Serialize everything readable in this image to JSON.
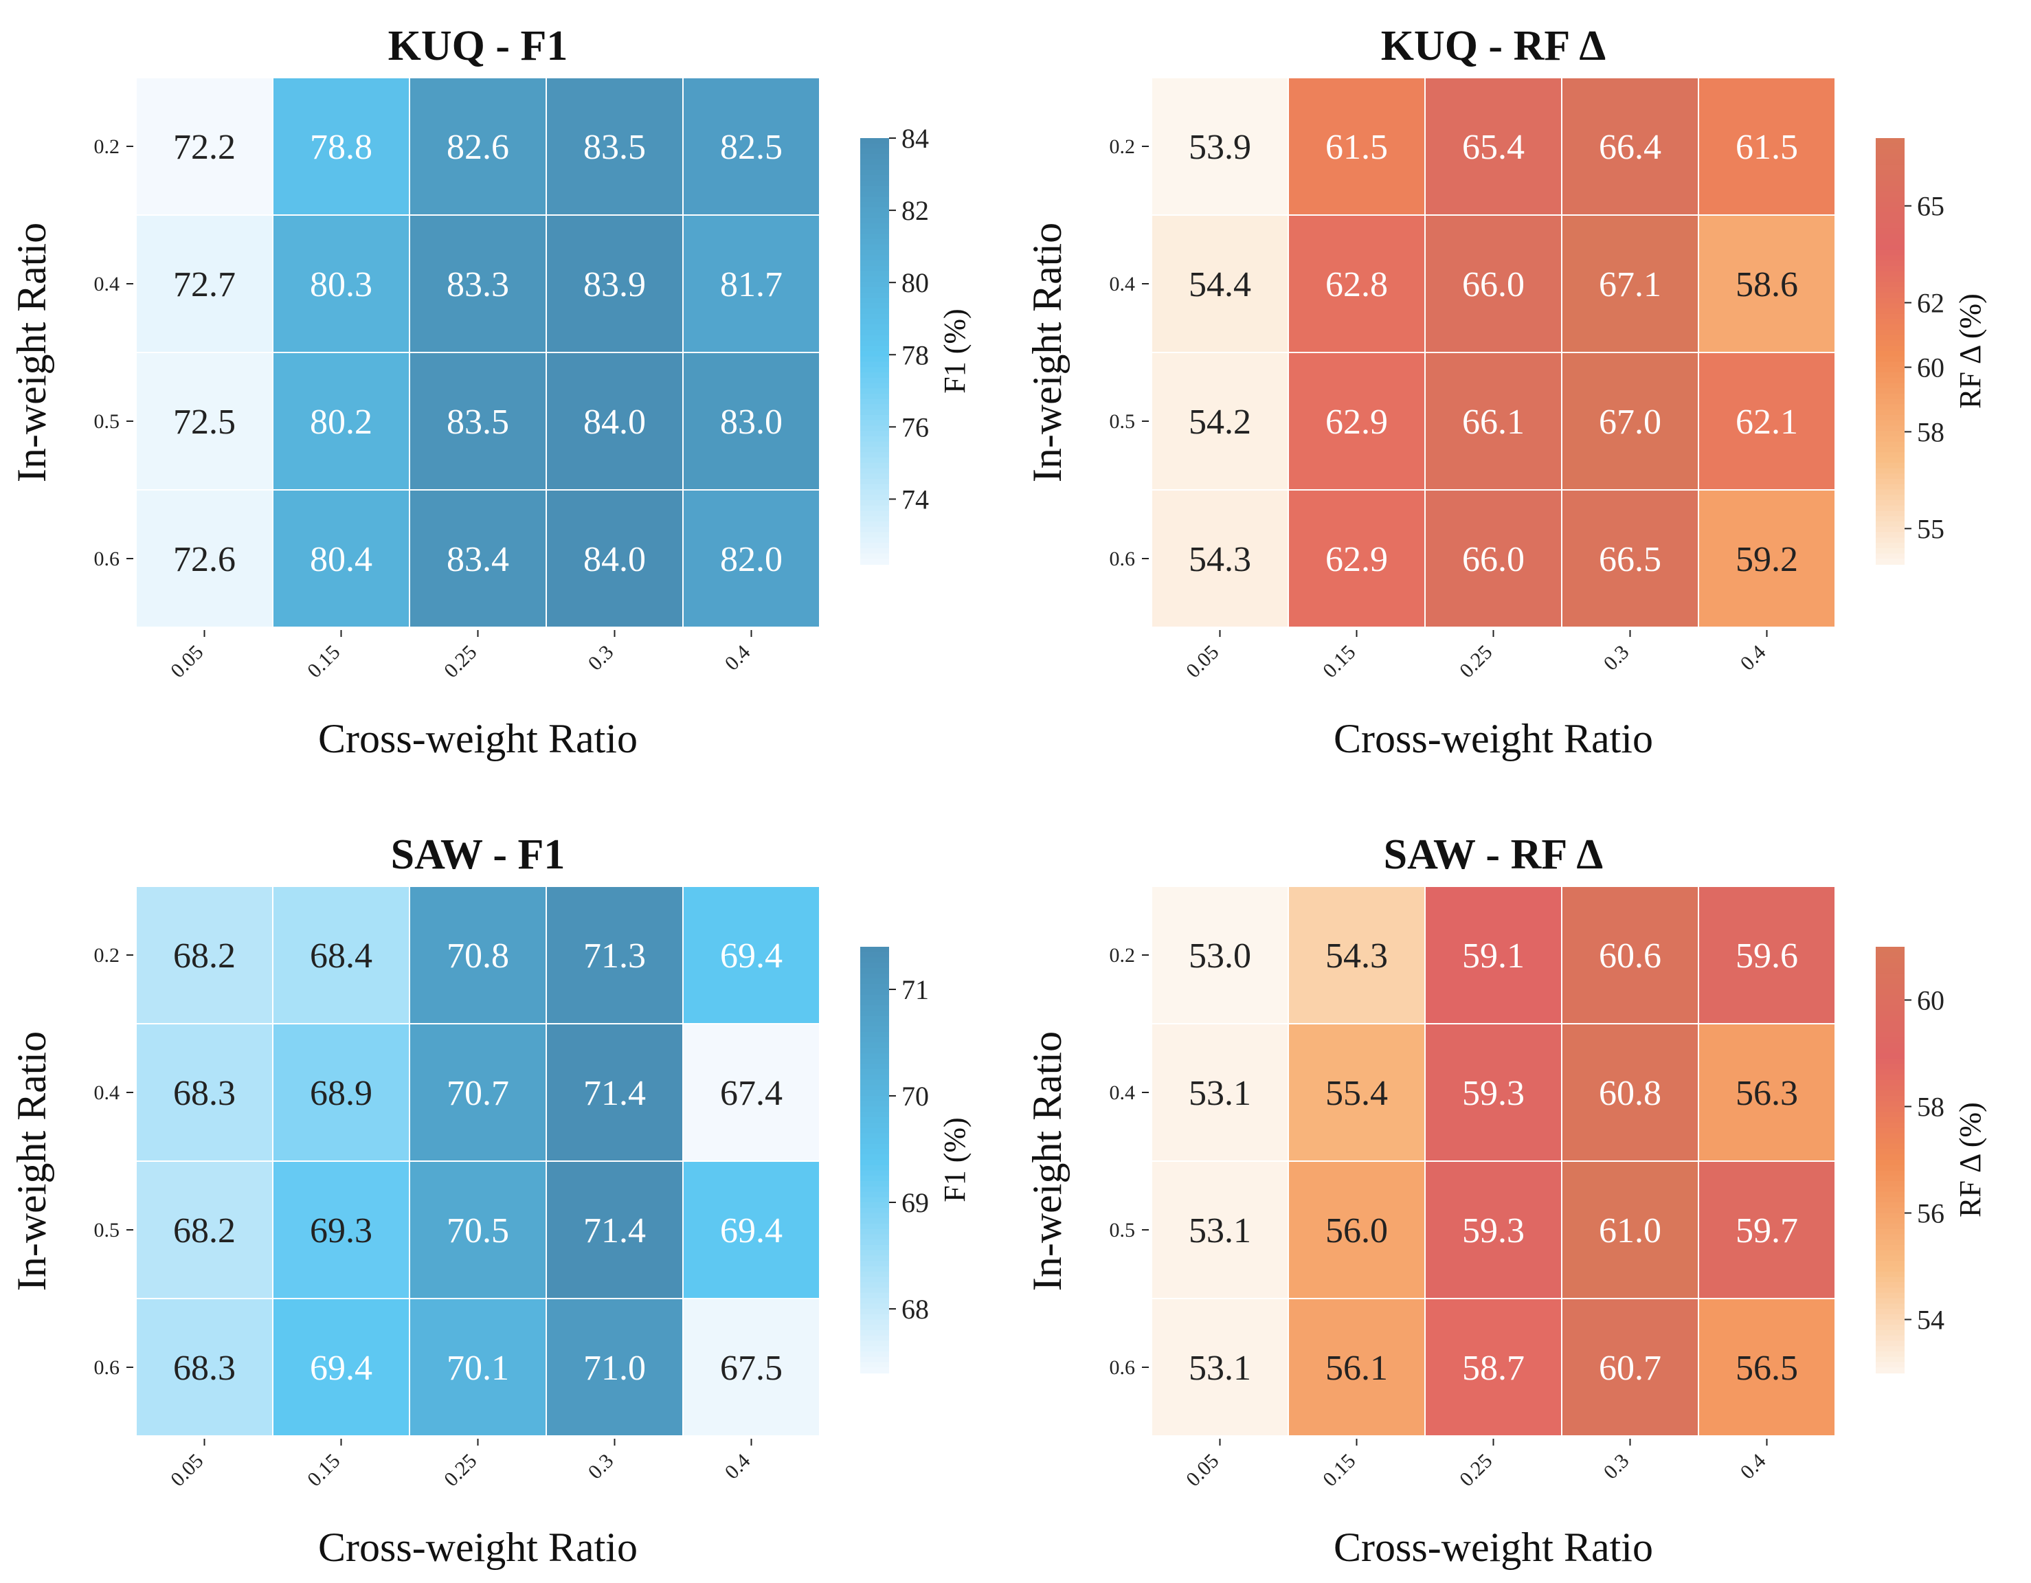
{
  "chart_data": [
    {
      "type": "heatmap",
      "title": "KUQ - F1",
      "xlabel": "Cross-weight Ratio",
      "ylabel": "In-weight Ratio",
      "x_ticks": [
        "0.05",
        "0.15",
        "0.25",
        "0.3",
        "0.4"
      ],
      "y_ticks": [
        "0.2",
        "0.4",
        "0.5",
        "0.6"
      ],
      "values": [
        [
          72.2,
          78.8,
          82.6,
          83.5,
          82.5
        ],
        [
          72.7,
          80.3,
          83.3,
          83.9,
          81.7
        ],
        [
          72.5,
          80.2,
          83.5,
          84.0,
          83.0
        ],
        [
          72.6,
          80.4,
          83.4,
          84.0,
          82.0
        ]
      ],
      "colormap": [
        "#f4f9fe",
        "#5ec8f2",
        "#4a8fb5"
      ],
      "colorbar": {
        "label": "F1 (%)",
        "range": [
          72.2,
          84.0
        ],
        "ticks": [
          "74",
          "76",
          "78",
          "80",
          "82",
          "84"
        ]
      }
    },
    {
      "type": "heatmap",
      "title": "KUQ - RF Δ",
      "xlabel": "Cross-weight Ratio",
      "ylabel": "In-weight Ratio",
      "x_ticks": [
        "0.05",
        "0.15",
        "0.25",
        "0.3",
        "0.4"
      ],
      "y_ticks": [
        "0.2",
        "0.4",
        "0.5",
        "0.6"
      ],
      "values": [
        [
          53.9,
          61.5,
          65.4,
          66.4,
          61.5
        ],
        [
          54.4,
          62.8,
          66.0,
          67.1,
          58.6
        ],
        [
          54.2,
          62.9,
          66.1,
          67.0,
          62.1
        ],
        [
          54.3,
          62.9,
          66.0,
          66.5,
          59.2
        ]
      ],
      "colormap": [
        "#fdf6ee",
        "#f9be85",
        "#f28d55",
        "#e06565",
        "#d9775a"
      ],
      "colorbar": {
        "label": "RF Δ (%)",
        "range": [
          53.9,
          67.1
        ],
        "ticks": [
          "55",
          "58",
          "60",
          "62",
          "65"
        ]
      }
    },
    {
      "type": "heatmap",
      "title": "SAW - F1",
      "xlabel": "Cross-weight Ratio",
      "ylabel": "In-weight Ratio",
      "x_ticks": [
        "0.05",
        "0.15",
        "0.25",
        "0.3",
        "0.4"
      ],
      "y_ticks": [
        "0.2",
        "0.4",
        "0.5",
        "0.6"
      ],
      "values": [
        [
          68.2,
          68.4,
          70.8,
          71.3,
          69.4
        ],
        [
          68.3,
          68.9,
          70.7,
          71.4,
          67.4
        ],
        [
          68.2,
          69.3,
          70.5,
          71.4,
          69.4
        ],
        [
          68.3,
          69.4,
          70.1,
          71.0,
          67.5
        ]
      ],
      "colormap": [
        "#f4f9fe",
        "#5ec8f2",
        "#4a8fb5"
      ],
      "colorbar": {
        "label": "F1 (%)",
        "range": [
          67.4,
          71.4
        ],
        "ticks": [
          "68",
          "69",
          "70",
          "71"
        ]
      }
    },
    {
      "type": "heatmap",
      "title": "SAW - RF Δ",
      "xlabel": "Cross-weight Ratio",
      "ylabel": "In-weight Ratio",
      "x_ticks": [
        "0.05",
        "0.15",
        "0.25",
        "0.3",
        "0.4"
      ],
      "y_ticks": [
        "0.2",
        "0.4",
        "0.5",
        "0.6"
      ],
      "values": [
        [
          53.0,
          54.3,
          59.1,
          60.6,
          59.6
        ],
        [
          53.1,
          55.4,
          59.3,
          60.8,
          56.3
        ],
        [
          53.1,
          56.0,
          59.3,
          61.0,
          59.7
        ],
        [
          53.1,
          56.1,
          58.7,
          60.7,
          56.5
        ]
      ],
      "colormap": [
        "#fdf6ee",
        "#f9be85",
        "#f28d55",
        "#e06565",
        "#d9775a"
      ],
      "colorbar": {
        "label": "RF Δ (%)",
        "range": [
          53.0,
          61.0
        ],
        "ticks": [
          "54",
          "56",
          "58",
          "60"
        ]
      }
    }
  ]
}
